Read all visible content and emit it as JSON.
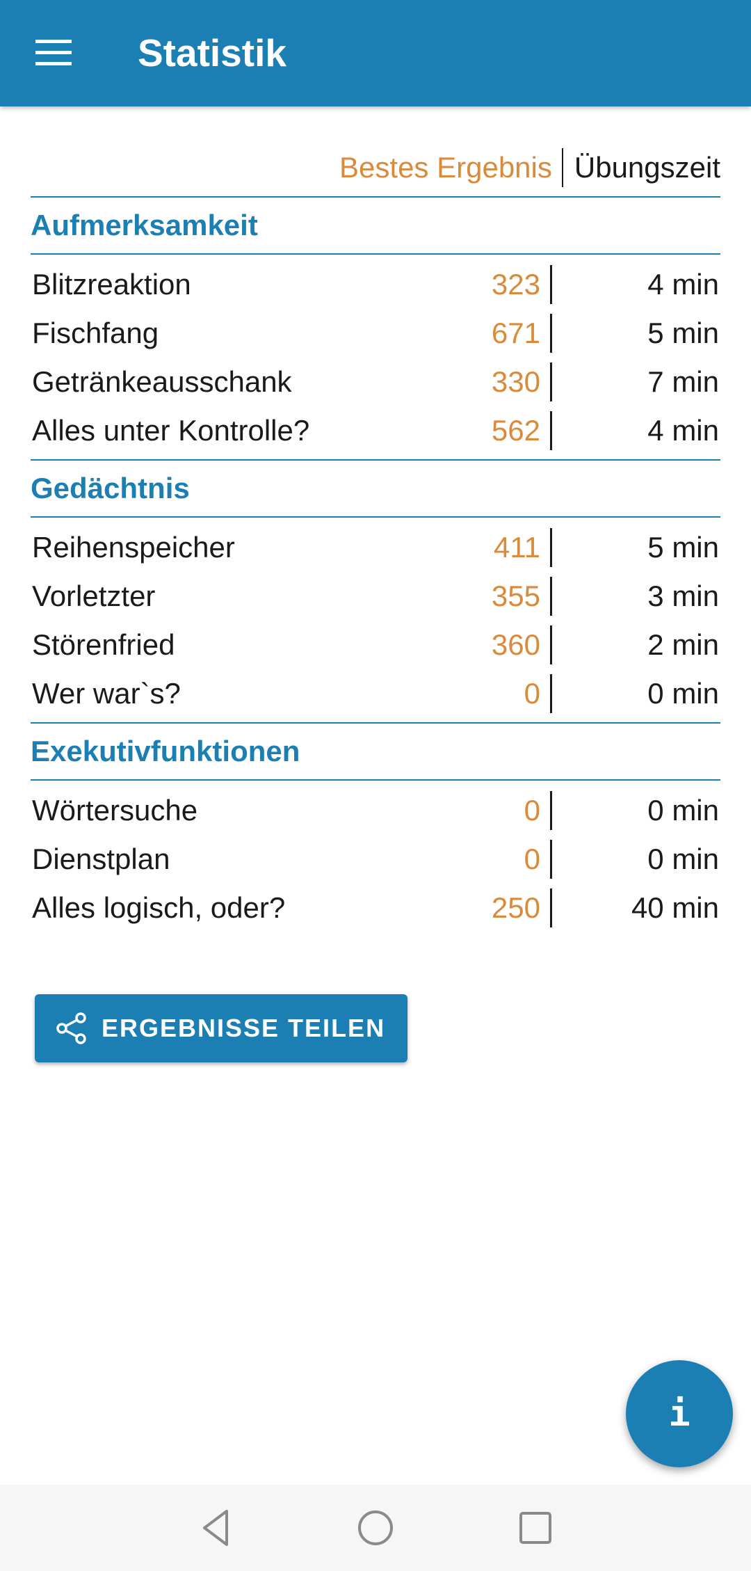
{
  "appbar": {
    "title": "Statistik",
    "menu_icon": "hamburger-menu-icon"
  },
  "columns": {
    "best_result": "Bestes Ergebnis",
    "practice_time": "Übungszeit"
  },
  "sections": [
    {
      "title": "Aufmerksamkeit",
      "rows": [
        {
          "name": "Blitzreaktion",
          "score": "323",
          "time": "4 min"
        },
        {
          "name": "Fischfang",
          "score": "671",
          "time": "5 min"
        },
        {
          "name": "Getränkeausschank",
          "score": "330",
          "time": "7 min"
        },
        {
          "name": "Alles unter Kontrolle?",
          "score": "562",
          "time": "4 min"
        }
      ]
    },
    {
      "title": "Gedächtnis",
      "rows": [
        {
          "name": "Reihenspeicher",
          "score": "411",
          "time": "5 min"
        },
        {
          "name": "Vorletzter",
          "score": "355",
          "time": "3 min"
        },
        {
          "name": "Störenfried",
          "score": "360",
          "time": "2 min"
        },
        {
          "name": "Wer war`s?",
          "score": "0",
          "time": "0 min"
        }
      ]
    },
    {
      "title": "Exekutivfunktionen",
      "rows": [
        {
          "name": "Wörtersuche",
          "score": "0",
          "time": "0 min"
        },
        {
          "name": "Dienstplan",
          "score": "0",
          "time": "0 min"
        },
        {
          "name": "Alles logisch, oder?",
          "score": "250",
          "time": "40 min"
        }
      ]
    }
  ],
  "share_button": {
    "label": "ERGEBNISSE TEILEN",
    "icon": "share-icon"
  },
  "fab": {
    "label": "i",
    "icon": "info-icon"
  },
  "colors": {
    "primary": "#1c7fb3",
    "score": "#d98a3a"
  },
  "navigation": {
    "icons": [
      "back-icon",
      "home-icon",
      "recent-apps-icon"
    ]
  }
}
